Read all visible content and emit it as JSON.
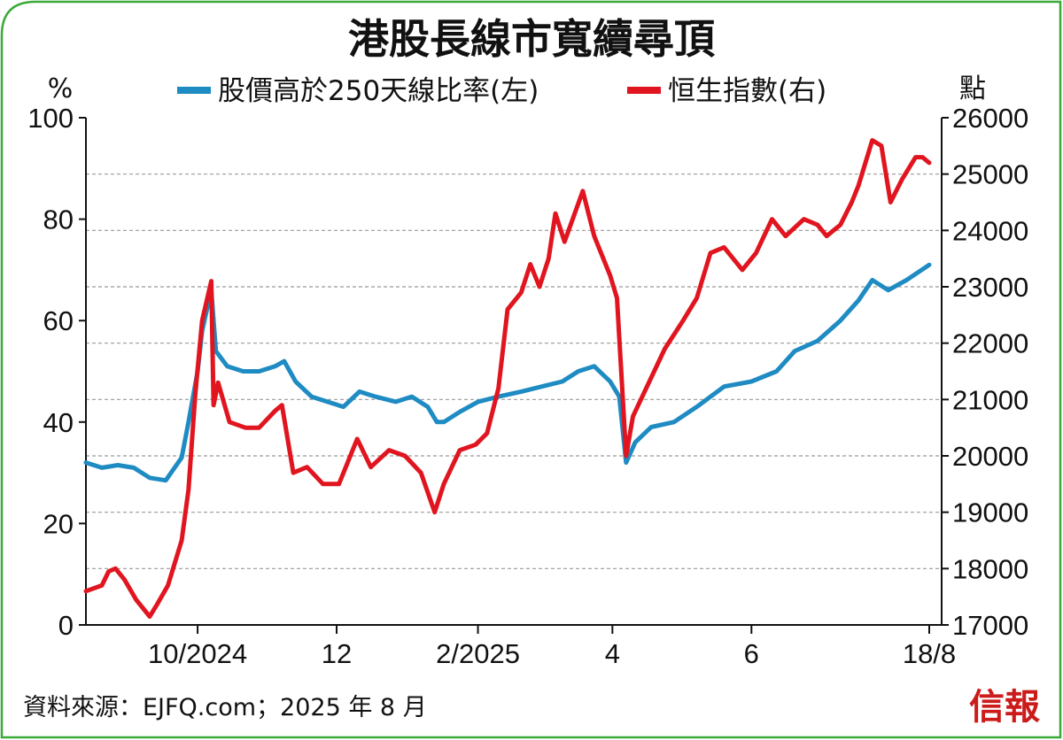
{
  "title": "港股長線市寬續尋頂",
  "left_unit": "%",
  "right_unit": "點",
  "source": "資料來源：EJFQ.com；2025 年 8 月",
  "brand": "信報",
  "colors": {
    "blue": "#1e8bc3",
    "red": "#e0151f",
    "frame": "#3aaa3a"
  },
  "chart_data": {
    "type": "line",
    "title": "港股長線市寬續尋頂",
    "x_tick_labels": [
      "10/2024",
      "12",
      "2/2025",
      "4",
      "6",
      "18/8"
    ],
    "x_tick_dates": [
      "2024-10-01",
      "2024-12-01",
      "2025-02-01",
      "2025-04-01",
      "2025-06-01",
      "2025-08-18"
    ],
    "x_range": [
      "2024-08-13",
      "2025-08-18"
    ],
    "left_axis": {
      "unit": "%",
      "range": [
        0,
        100
      ],
      "ticks": [
        0,
        20,
        40,
        60,
        80,
        100
      ]
    },
    "right_axis": {
      "unit": "點",
      "range": [
        17000,
        26000
      ],
      "ticks": [
        17000,
        18000,
        19000,
        20000,
        21000,
        22000,
        23000,
        24000,
        25000,
        26000
      ]
    },
    "grid": true,
    "legend_position": "top",
    "series": [
      {
        "name": "股價高於250天線比率(左)",
        "axis": "left",
        "color": "#1e8bc3",
        "points": [
          [
            "2024-08-13",
            32
          ],
          [
            "2024-08-20",
            31
          ],
          [
            "2024-08-27",
            31.5
          ],
          [
            "2024-09-03",
            31
          ],
          [
            "2024-09-10",
            29
          ],
          [
            "2024-09-17",
            28.5
          ],
          [
            "2024-09-24",
            33
          ],
          [
            "2024-09-27",
            40
          ],
          [
            "2024-10-01",
            50
          ],
          [
            "2024-10-03",
            58
          ],
          [
            "2024-10-07",
            66
          ],
          [
            "2024-10-09",
            54
          ],
          [
            "2024-10-14",
            51
          ],
          [
            "2024-10-21",
            50
          ],
          [
            "2024-10-28",
            50
          ],
          [
            "2024-11-04",
            51
          ],
          [
            "2024-11-08",
            52
          ],
          [
            "2024-11-13",
            48
          ],
          [
            "2024-11-20",
            45
          ],
          [
            "2024-11-27",
            44
          ],
          [
            "2024-12-04",
            43
          ],
          [
            "2024-12-11",
            46
          ],
          [
            "2024-12-18",
            45
          ],
          [
            "2024-12-27",
            44
          ],
          [
            "2025-01-03",
            45
          ],
          [
            "2025-01-10",
            43
          ],
          [
            "2025-01-14",
            40
          ],
          [
            "2025-01-17",
            40
          ],
          [
            "2025-01-24",
            42
          ],
          [
            "2025-02-01",
            44
          ],
          [
            "2025-02-10",
            45
          ],
          [
            "2025-02-20",
            46
          ],
          [
            "2025-03-01",
            47
          ],
          [
            "2025-03-10",
            48
          ],
          [
            "2025-03-17",
            50
          ],
          [
            "2025-03-24",
            51
          ],
          [
            "2025-03-31",
            48
          ],
          [
            "2025-04-04",
            45
          ],
          [
            "2025-04-07",
            32
          ],
          [
            "2025-04-11",
            36
          ],
          [
            "2025-04-18",
            39
          ],
          [
            "2025-04-28",
            40
          ],
          [
            "2025-05-08",
            43
          ],
          [
            "2025-05-20",
            47
          ],
          [
            "2025-06-01",
            48
          ],
          [
            "2025-06-12",
            50
          ],
          [
            "2025-06-20",
            54
          ],
          [
            "2025-06-30",
            56
          ],
          [
            "2025-07-10",
            60
          ],
          [
            "2025-07-18",
            64
          ],
          [
            "2025-07-24",
            68
          ],
          [
            "2025-07-31",
            66
          ],
          [
            "2025-08-08",
            68
          ],
          [
            "2025-08-18",
            71
          ]
        ]
      },
      {
        "name": "恒生指數(右)",
        "axis": "right",
        "color": "#e0151f",
        "points": [
          [
            "2024-08-13",
            17600
          ],
          [
            "2024-08-20",
            17700
          ],
          [
            "2024-08-23",
            17950
          ],
          [
            "2024-08-26",
            18000
          ],
          [
            "2024-08-30",
            17800
          ],
          [
            "2024-09-04",
            17450
          ],
          [
            "2024-09-10",
            17150
          ],
          [
            "2024-09-13",
            17350
          ],
          [
            "2024-09-18",
            17700
          ],
          [
            "2024-09-24",
            18500
          ],
          [
            "2024-09-27",
            19400
          ],
          [
            "2024-09-30",
            21100
          ],
          [
            "2024-10-03",
            22400
          ],
          [
            "2024-10-07",
            23100
          ],
          [
            "2024-10-08",
            20900
          ],
          [
            "2024-10-10",
            21300
          ],
          [
            "2024-10-15",
            20600
          ],
          [
            "2024-10-22",
            20500
          ],
          [
            "2024-10-28",
            20500
          ],
          [
            "2024-11-04",
            20800
          ],
          [
            "2024-11-07",
            20900
          ],
          [
            "2024-11-12",
            19700
          ],
          [
            "2024-11-18",
            19800
          ],
          [
            "2024-11-25",
            19500
          ],
          [
            "2024-12-02",
            19500
          ],
          [
            "2024-12-06",
            19900
          ],
          [
            "2024-12-10",
            20300
          ],
          [
            "2024-12-16",
            19800
          ],
          [
            "2024-12-24",
            20100
          ],
          [
            "2024-12-31",
            20000
          ],
          [
            "2025-01-07",
            19700
          ],
          [
            "2025-01-13",
            19000
          ],
          [
            "2025-01-17",
            19500
          ],
          [
            "2025-01-24",
            20100
          ],
          [
            "2025-01-31",
            20200
          ],
          [
            "2025-02-05",
            20400
          ],
          [
            "2025-02-10",
            21200
          ],
          [
            "2025-02-14",
            22600
          ],
          [
            "2025-02-20",
            22900
          ],
          [
            "2025-02-24",
            23400
          ],
          [
            "2025-02-28",
            23000
          ],
          [
            "2025-03-04",
            23500
          ],
          [
            "2025-03-07",
            24300
          ],
          [
            "2025-03-11",
            23800
          ],
          [
            "2025-03-19",
            24700
          ],
          [
            "2025-03-24",
            23900
          ],
          [
            "2025-03-31",
            23200
          ],
          [
            "2025-04-03",
            22800
          ],
          [
            "2025-04-07",
            20000
          ],
          [
            "2025-04-10",
            20700
          ],
          [
            "2025-04-17",
            21300
          ],
          [
            "2025-04-24",
            21900
          ],
          [
            "2025-05-02",
            22400
          ],
          [
            "2025-05-08",
            22800
          ],
          [
            "2025-05-14",
            23600
          ],
          [
            "2025-05-20",
            23700
          ],
          [
            "2025-05-28",
            23300
          ],
          [
            "2025-06-03",
            23600
          ],
          [
            "2025-06-10",
            24200
          ],
          [
            "2025-06-16",
            23900
          ],
          [
            "2025-06-24",
            24200
          ],
          [
            "2025-06-30",
            24100
          ],
          [
            "2025-07-04",
            23900
          ],
          [
            "2025-07-10",
            24100
          ],
          [
            "2025-07-15",
            24500
          ],
          [
            "2025-07-18",
            24800
          ],
          [
            "2025-07-24",
            25600
          ],
          [
            "2025-07-28",
            25500
          ],
          [
            "2025-08-01",
            24500
          ],
          [
            "2025-08-06",
            24900
          ],
          [
            "2025-08-12",
            25300
          ],
          [
            "2025-08-15",
            25300
          ],
          [
            "2025-08-18",
            25200
          ]
        ]
      }
    ]
  }
}
